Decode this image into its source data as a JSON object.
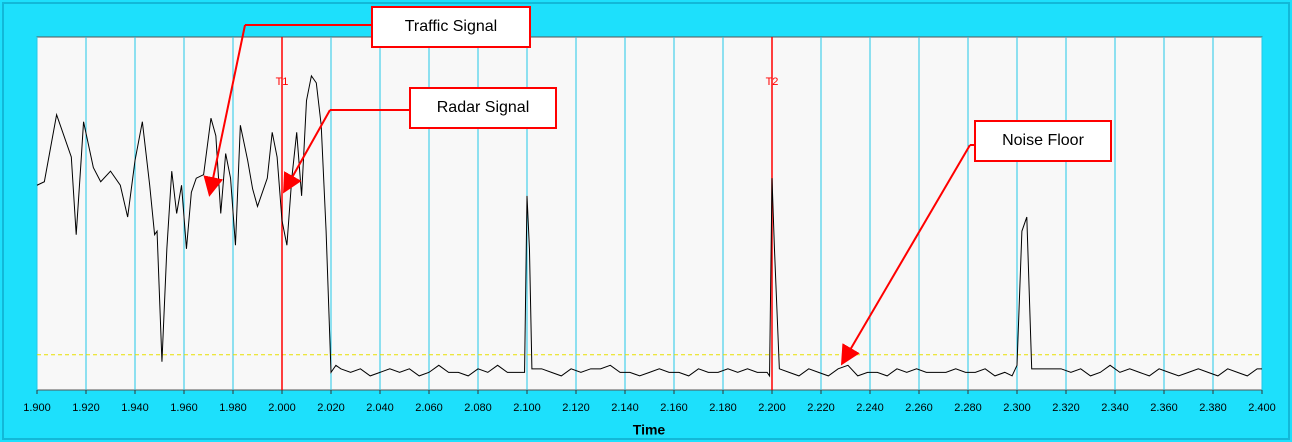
{
  "chart_data": {
    "type": "line",
    "xlabel": "Time",
    "x": [
      1.9,
      1.903,
      1.908,
      1.914,
      1.916,
      1.918,
      1.919,
      1.923,
      1.926,
      1.93,
      1.934,
      1.937,
      1.94,
      1.943,
      1.946,
      1.948,
      1.949,
      1.951,
      1.953,
      1.955,
      1.957,
      1.959,
      1.961,
      1.963,
      1.965,
      1.968,
      1.971,
      1.973,
      1.975,
      1.977,
      1.979,
      1.981,
      1.983,
      1.986,
      1.988,
      1.99,
      1.994,
      1.996,
      1.998,
      2.0,
      2.002,
      2.004,
      2.006,
      2.008,
      2.01,
      2.012,
      2.014,
      2.016,
      2.018,
      2.02,
      2.022,
      2.024,
      2.028,
      2.032,
      2.036,
      2.04,
      2.044,
      2.048,
      2.052,
      2.056,
      2.06,
      2.064,
      2.068,
      2.072,
      2.076,
      2.08,
      2.084,
      2.088,
      2.092,
      2.096,
      2.099,
      2.1,
      2.101,
      2.102,
      2.106,
      2.11,
      2.114,
      2.118,
      2.122,
      2.126,
      2.13,
      2.134,
      2.138,
      2.142,
      2.146,
      2.15,
      2.154,
      2.158,
      2.162,
      2.166,
      2.17,
      2.174,
      2.178,
      2.182,
      2.186,
      2.19,
      2.194,
      2.198,
      2.199,
      2.2,
      2.201,
      2.203,
      2.207,
      2.211,
      2.215,
      2.219,
      2.223,
      2.227,
      2.231,
      2.235,
      2.239,
      2.243,
      2.247,
      2.251,
      2.255,
      2.259,
      2.263,
      2.267,
      2.271,
      2.275,
      2.279,
      2.283,
      2.287,
      2.291,
      2.295,
      2.298,
      2.3,
      2.302,
      2.304,
      2.306,
      2.31,
      2.314,
      2.318,
      2.322,
      2.326,
      2.33,
      2.334,
      2.338,
      2.342,
      2.346,
      2.35,
      2.354,
      2.358,
      2.362,
      2.366,
      2.37,
      2.374,
      2.378,
      2.382,
      2.386,
      2.39,
      2.394,
      2.398,
      2.4
    ],
    "values": [
      58,
      59,
      78,
      66,
      44,
      65,
      76,
      63,
      59,
      62,
      58,
      49,
      65,
      76,
      58,
      44,
      45,
      8,
      40,
      62,
      50,
      58,
      40,
      56,
      60,
      61,
      77,
      72,
      50,
      67,
      60,
      41,
      75,
      65,
      57,
      52,
      60,
      73,
      66,
      48,
      41,
      60,
      73,
      55,
      82,
      89,
      87,
      75,
      45,
      5,
      7,
      6,
      5,
      6,
      4,
      5,
      6,
      5,
      6,
      4,
      5,
      7,
      5,
      5,
      4,
      6,
      5,
      7,
      5,
      5,
      5,
      55,
      40,
      6,
      6,
      5,
      4,
      6,
      5,
      6,
      6,
      7,
      5,
      5,
      4,
      5,
      6,
      5,
      5,
      4,
      6,
      5,
      5,
      6,
      5,
      6,
      5,
      5,
      4,
      60,
      40,
      6,
      5,
      4,
      6,
      5,
      4,
      6,
      7,
      4,
      5,
      5,
      4,
      6,
      5,
      6,
      5,
      5,
      5,
      6,
      5,
      5,
      6,
      4,
      5,
      4,
      7,
      45,
      49,
      6,
      6,
      6,
      6,
      5,
      6,
      4,
      5,
      7,
      5,
      6,
      5,
      4,
      6,
      5,
      4,
      5,
      6,
      5,
      4,
      6,
      5,
      4,
      6,
      6
    ],
    "color": "#000000",
    "xlim": [
      1.9,
      2.4
    ],
    "ylim": [
      0,
      100
    ],
    "xticks": [
      {
        "value": 1.9,
        "label": "1.900"
      },
      {
        "value": 1.92,
        "label": "1.920"
      },
      {
        "value": 1.94,
        "label": "1.940"
      },
      {
        "value": 1.96,
        "label": "1.960"
      },
      {
        "value": 1.98,
        "label": "1.980"
      },
      {
        "value": 2.0,
        "label": "2.000"
      },
      {
        "value": 2.02,
        "label": "2.020"
      },
      {
        "value": 2.04,
        "label": "2.040"
      },
      {
        "value": 2.06,
        "label": "2.060"
      },
      {
        "value": 2.08,
        "label": "2.080"
      },
      {
        "value": 2.1,
        "label": "2.100"
      },
      {
        "value": 2.12,
        "label": "2.120"
      },
      {
        "value": 2.14,
        "label": "2.140"
      },
      {
        "value": 2.16,
        "label": "2.160"
      },
      {
        "value": 2.18,
        "label": "2.180"
      },
      {
        "value": 2.2,
        "label": "2.200"
      },
      {
        "value": 2.22,
        "label": "2.220"
      },
      {
        "value": 2.24,
        "label": "2.240"
      },
      {
        "value": 2.26,
        "label": "2.260"
      },
      {
        "value": 2.28,
        "label": "2.280"
      },
      {
        "value": 2.3,
        "label": "2.300"
      },
      {
        "value": 2.32,
        "label": "2.320"
      },
      {
        "value": 2.34,
        "label": "2.340"
      },
      {
        "value": 2.36,
        "label": "2.360"
      },
      {
        "value": 2.38,
        "label": "2.380"
      },
      {
        "value": 2.4,
        "label": "2.400"
      }
    ],
    "grid": true,
    "grid_color": "#22c8e8",
    "cursors": [
      {
        "label": "T1",
        "x": 2.0,
        "color": "#ff0000"
      },
      {
        "label": "T2",
        "x": 2.2,
        "color": "#ff0000"
      }
    ],
    "threshold": {
      "value": 10,
      "color": "#e8e000"
    },
    "annotations": [
      {
        "text": "Traffic Signal"
      },
      {
        "text": "Radar Signal"
      },
      {
        "text": "Noise Floor"
      }
    ]
  }
}
